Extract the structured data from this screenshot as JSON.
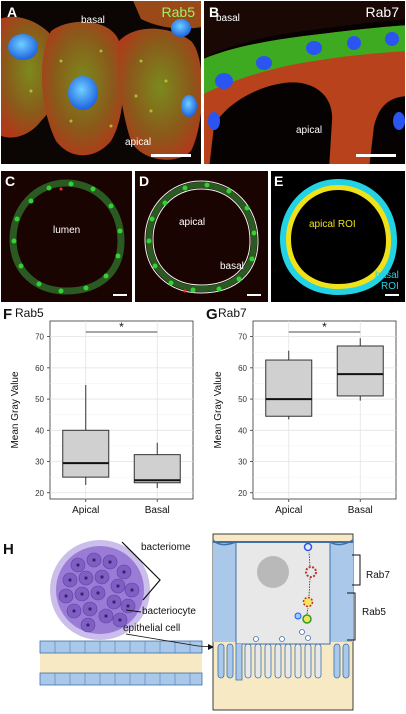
{
  "figure": {
    "A": {
      "letter": "A",
      "marker": "Rab5",
      "top_label": "basal",
      "bottom_label": "apical"
    },
    "B": {
      "letter": "B",
      "marker": "Rab7",
      "top_label": "basal",
      "bottom_label": "apical"
    },
    "C": {
      "letter": "C",
      "center_label": "lumen"
    },
    "D": {
      "letter": "D",
      "center_label": "apical",
      "outer_label": "basal"
    },
    "E": {
      "letter": "E",
      "inner_label": "apical ROI",
      "outer_label_1": "basal",
      "outer_label_2": "ROI"
    },
    "F": {
      "letter": "F"
    },
    "G": {
      "letter": "G"
    },
    "H": {
      "letter": "H",
      "label_bacteriome": "bacteriome",
      "label_bacteriocyte": "bacteriocyte",
      "label_epithelial": "epithelial cell",
      "label_rab7": "Rab7",
      "label_rab5": "Rab5"
    }
  },
  "colors": {
    "green": "#3ddc3d",
    "red_orange": "#c8431a",
    "blue": "#2f6bff",
    "cyan": "#22d3e6",
    "yellow": "#f0e11a",
    "box_fill": "#d0d0d0",
    "epithelium_blue": "#a9c8ea",
    "bacteriome_purple": "#8a63c7"
  },
  "chart_data": [
    {
      "type": "boxplot",
      "title": "Rab5",
      "xlabel": "",
      "ylabel": "Mean Gray Value",
      "categories": [
        "Apical",
        "Basal"
      ],
      "ylim": [
        18,
        75
      ],
      "yticks": [
        20,
        30,
        40,
        50,
        60,
        70
      ],
      "boxes": [
        {
          "name": "Apical",
          "min": 22.5,
          "q1": 25,
          "median": 29.5,
          "q3": 40,
          "max": 54.5
        },
        {
          "name": "Basal",
          "min": 21.5,
          "q1": 23.2,
          "median": 24,
          "q3": 32.2,
          "max": 36
        }
      ],
      "significance": "*",
      "grid": true
    },
    {
      "type": "boxplot",
      "title": "Rab7",
      "xlabel": "",
      "ylabel": "Mean Gray Value",
      "categories": [
        "Apical",
        "Basal"
      ],
      "ylim": [
        18,
        75
      ],
      "yticks": [
        20,
        30,
        40,
        50,
        60,
        70
      ],
      "boxes": [
        {
          "name": "Apical",
          "min": 43.5,
          "q1": 44.5,
          "median": 50,
          "q3": 62.5,
          "max": 65.5
        },
        {
          "name": "Basal",
          "min": 49.5,
          "q1": 51,
          "median": 58,
          "q3": 67,
          "max": 69.5
        }
      ],
      "significance": "*",
      "grid": true
    }
  ]
}
